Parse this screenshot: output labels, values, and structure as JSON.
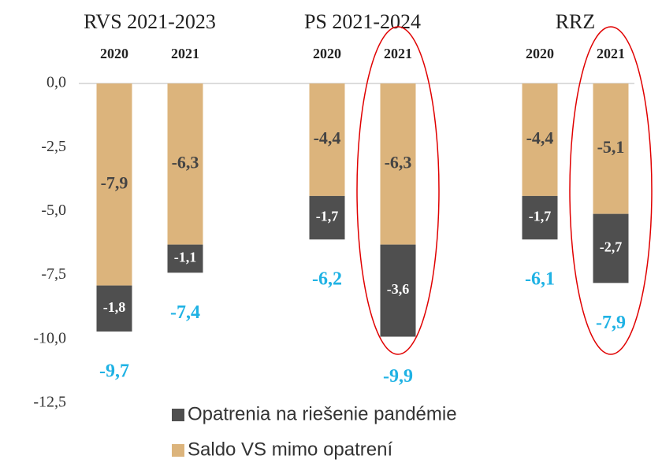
{
  "chart_data": {
    "type": "stacked_bar",
    "groups": [
      "RVS 2021-2023",
      "PS 2021-2024",
      "RRZ"
    ],
    "categories": [
      "2020",
      "2021",
      "2020",
      "2021",
      "2020",
      "2021"
    ],
    "series": [
      {
        "name": "Saldo VS mimo opatrení",
        "color": "#dcb47c",
        "values": [
          -7.9,
          -6.3,
          -4.4,
          -6.3,
          -4.4,
          -5.1
        ],
        "value_labels": [
          "-7,9",
          "-6,3",
          "-4,4",
          "-6,3",
          "-4,4",
          "-5,1"
        ]
      },
      {
        "name": "Opatrenia na riešenie pandémie",
        "color": "#4f4f4f",
        "values": [
          -1.8,
          -1.1,
          -1.7,
          -3.6,
          -1.7,
          -2.7
        ],
        "value_labels": [
          "-1,8",
          "-1,1",
          "-1,7",
          "-3,6",
          "-1,7",
          "-2,7"
        ]
      }
    ],
    "totals": {
      "color": "#1fb2e4",
      "values": [
        -9.7,
        -7.4,
        -6.2,
        -9.9,
        -6.1,
        -7.9
      ],
      "value_labels": [
        "-9,7",
        "-7,4",
        "-6,2",
        "-9,9",
        "-6,1",
        "-7,9"
      ]
    },
    "ylim": [
      -12.5,
      0
    ],
    "yticks": [
      {
        "value": 0,
        "label": "0,0"
      },
      {
        "value": -2.5,
        "label": "-2,5"
      },
      {
        "value": -5,
        "label": "-5,0"
      },
      {
        "value": -7.5,
        "label": "-7,5"
      },
      {
        "value": -10,
        "label": "-10,0"
      },
      {
        "value": -12.5,
        "label": "-12,5"
      }
    ],
    "highlighted_categories": [
      3,
      5
    ],
    "highlight_color": "#e00000",
    "grid": false
  }
}
